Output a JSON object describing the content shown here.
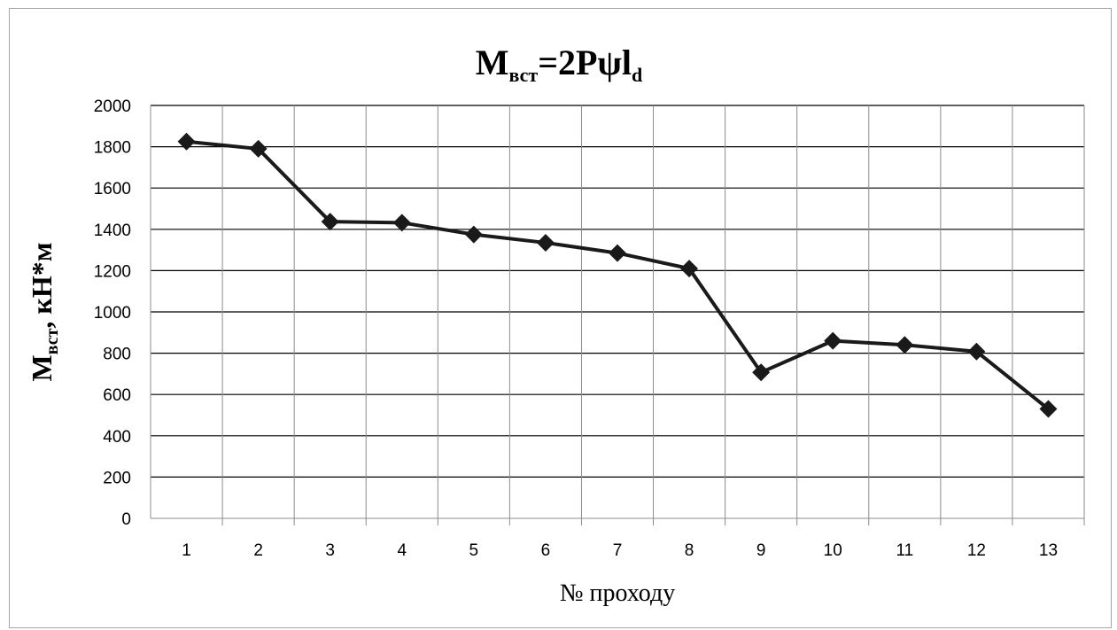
{
  "chart_data": {
    "type": "line",
    "title": {
      "main": "M",
      "main_sub": "вст",
      "rest": "=2Pψl",
      "rest_sub": "d"
    },
    "xlabel": "№ проходу",
    "ylabel": {
      "main": "M",
      "sub": "вст",
      "rest": ", кН*м"
    },
    "categories": [
      "1",
      "2",
      "3",
      "4",
      "5",
      "6",
      "7",
      "8",
      "9",
      "10",
      "11",
      "12",
      "13"
    ],
    "series": [
      {
        "values": [
          1825,
          1790,
          1437,
          1432,
          1375,
          1335,
          1285,
          1210,
          707,
          860,
          840,
          808,
          530
        ]
      }
    ],
    "ylim": [
      0,
      2000
    ],
    "yticks": [
      0,
      200,
      400,
      600,
      800,
      1000,
      1200,
      1400,
      1600,
      1800,
      2000
    ],
    "grid": true,
    "marker": "diamond",
    "line_color": "#1a1a1a"
  }
}
